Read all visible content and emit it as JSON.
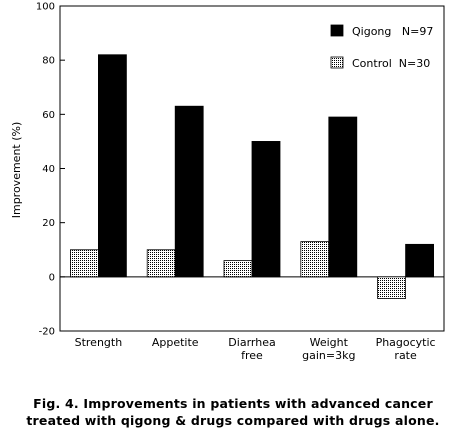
{
  "chart_data": {
    "type": "bar",
    "categories": [
      [
        "Strength"
      ],
      [
        "Appetite"
      ],
      [
        "Diarrhea",
        "free"
      ],
      [
        "Weight",
        "gain=3kg"
      ],
      [
        "Phagocytic",
        "rate"
      ]
    ],
    "series": [
      {
        "name": "Control  N=30",
        "pattern": "dotted",
        "values": [
          10,
          10,
          6,
          13,
          -8
        ]
      },
      {
        "name": "Qigong   N=97",
        "color": "#000000",
        "values": [
          82,
          63,
          50,
          59,
          12
        ]
      }
    ],
    "ylabel": "Improvement (%)",
    "xlabel": "",
    "ylim": [
      -20,
      100
    ],
    "yticks": [
      -20,
      0,
      20,
      40,
      60,
      80,
      100
    ],
    "legend_position": "top-right",
    "grid": false
  },
  "caption": {
    "line1": "Fig. 4. Improvements in patients with advanced cancer",
    "line2": "treated with qigong & drugs compared with drugs alone."
  }
}
